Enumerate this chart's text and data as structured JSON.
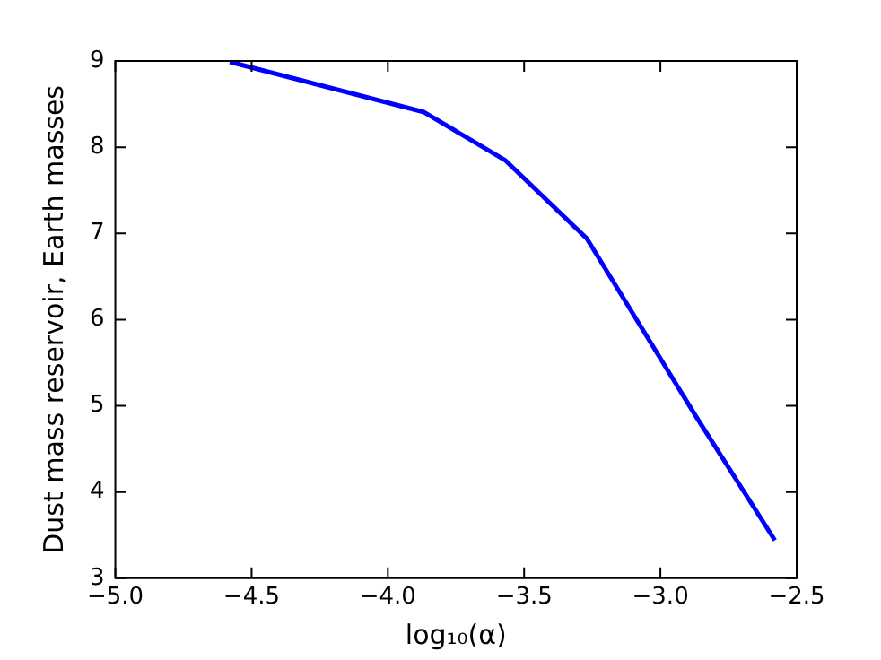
{
  "chart_data": {
    "type": "line",
    "xlabel": "log₁₀(α)",
    "ylabel": "Dust mass reservoir, Earth masses",
    "x": [
      -4.58,
      -3.87,
      -3.57,
      -3.27,
      -2.87,
      -2.58
    ],
    "series": [
      {
        "color": "#0000ff",
        "values": [
          8.99,
          8.41,
          7.85,
          6.94,
          4.88,
          3.44
        ]
      }
    ],
    "xlim": [
      -5.0,
      -2.5
    ],
    "xticks": [
      {
        "value": -5.0,
        "label": "−5.0"
      },
      {
        "value": -4.5,
        "label": "−4.5"
      },
      {
        "value": -4.0,
        "label": "−4.0"
      },
      {
        "value": -3.5,
        "label": "−3.5"
      },
      {
        "value": -3.0,
        "label": "−3.0"
      },
      {
        "value": -2.5,
        "label": "−2.5"
      }
    ],
    "ylim": [
      3,
      9
    ],
    "yticks": [
      3,
      4,
      5,
      6,
      7,
      8,
      9
    ],
    "legend": false,
    "marker": "none",
    "line_style": "solid"
  }
}
